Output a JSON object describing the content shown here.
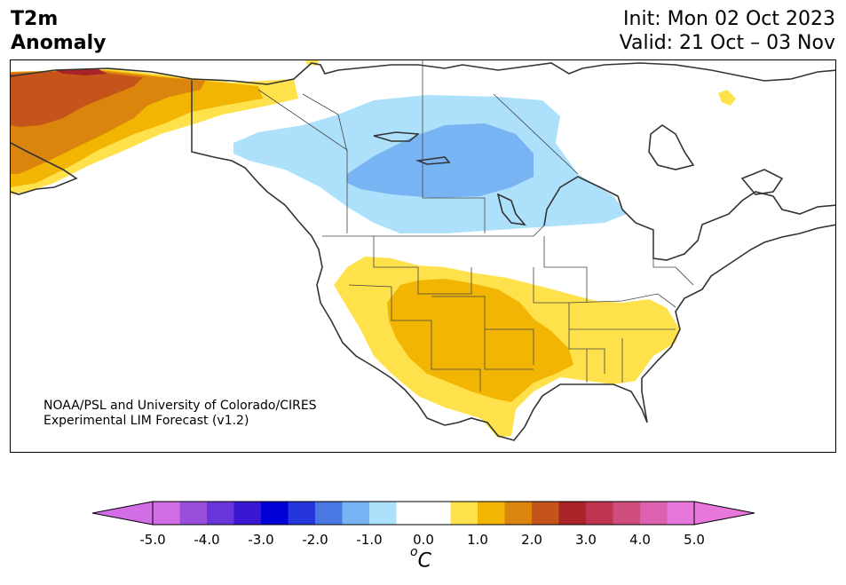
{
  "title": {
    "variable": "T2m",
    "subtitle": "Anomaly",
    "init": "Init: Mon 02 Oct 2023",
    "valid": "Valid: 21 Oct – 03 Nov"
  },
  "credit": {
    "line1": "NOAA/PSL and University of Colorado/CIRES",
    "line2": "Experimental LIM Forecast (v1.2)"
  },
  "colorbar": {
    "unit_superscript": "o",
    "unit_main": "C",
    "ticks": [
      "-5.0",
      "-4.0",
      "-3.0",
      "-2.0",
      "-1.0",
      "0.0",
      "1.0",
      "2.0",
      "3.0",
      "4.0",
      "5.0"
    ],
    "colors": [
      "#d26de6",
      "#9a4fdc",
      "#6a34db",
      "#3b17d2",
      "#0000d6",
      "#2436dc",
      "#4a78e2",
      "#78b4f3",
      "#ade0fb",
      "#ffffff",
      "#ffffff",
      "#ffe24b",
      "#f2b504",
      "#dc850e",
      "#c5541a",
      "#aa2327",
      "#bf3550",
      "#cf4c7f",
      "#dc61ae",
      "#e877dc"
    ],
    "under_color": "#d26de6",
    "over_color": "#e877dc"
  },
  "map_colors": {
    "plus1": "#ffe24b",
    "plus1_5": "#f2b504",
    "plus2": "#dc850e",
    "plus2_5": "#c5541a",
    "plus3": "#aa2327",
    "minus1": "#ade0fb",
    "minus1_5": "#78b4f3",
    "coast": "#333333"
  }
}
